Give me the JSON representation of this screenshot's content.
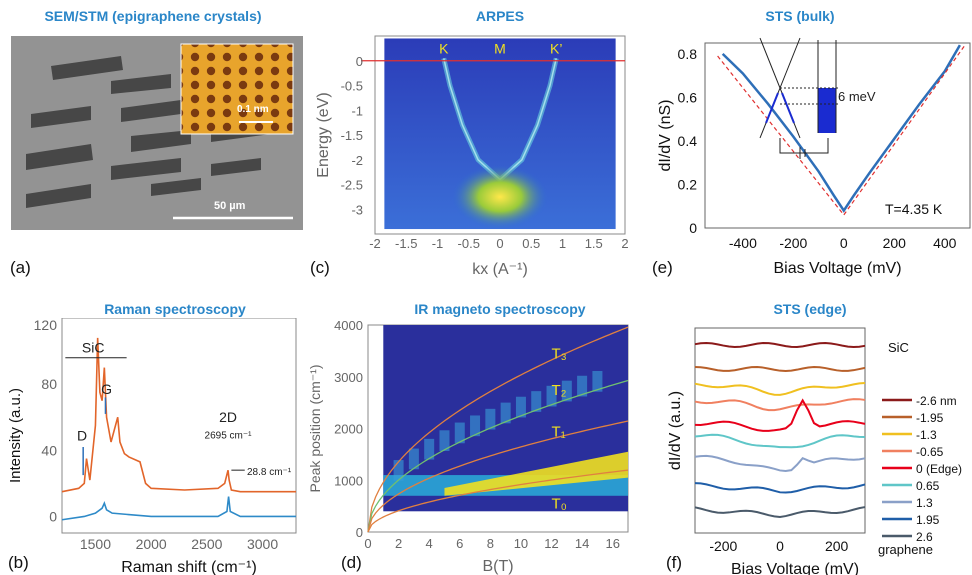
{
  "panel_labels": {
    "a": "(a)",
    "b": "(b)",
    "c": "(c)",
    "d": "(d)",
    "e": "(e)",
    "f": "(f)"
  },
  "colors": {
    "title": "#2a86c8",
    "red": "#e0001a",
    "blue": "#2e6fb8",
    "orange": "#e2652a"
  },
  "panel_a": {
    "title": "SEM/STM (epigraphene crystals)",
    "inset_label": "0.1 nm",
    "scale_label": "50 µm"
  },
  "chart_data": [
    {
      "id": "c",
      "title": "ARPES",
      "type": "heatmap",
      "xlabel": "kx (A⁻¹)",
      "ylabel": "Energy (eV)",
      "xlim": [
        -2,
        2
      ],
      "ylim": [
        -3.5,
        0.5
      ],
      "xticks": [
        "-2",
        "-1.5",
        "-1",
        "-0.5",
        "0",
        "0.5",
        "1",
        "1.5",
        "2"
      ],
      "yticks": [
        "0",
        "-0.5",
        "-1",
        "-1.5",
        "-2",
        "-2.5",
        "-3"
      ],
      "annotations": [
        {
          "text": "K",
          "x": -0.9
        },
        {
          "text": "M",
          "x": 0
        },
        {
          "text": "K’",
          "x": 0.9
        }
      ]
    },
    {
      "id": "e",
      "title": "STS (bulk)",
      "type": "line",
      "xlabel": "Bias Voltage (mV)",
      "ylabel": "dI/dV (nS)",
      "xlim": [
        -550,
        500
      ],
      "ylim": [
        0,
        0.85
      ],
      "xticks": [
        "-400",
        "-200",
        "0",
        "200",
        "400"
      ],
      "yticks": [
        "0",
        "0.2",
        "0.4",
        "0.6",
        "0.8"
      ],
      "annotation": "T=4.35 K",
      "inset_label": "6 meV",
      "series": [
        {
          "x": [
            -480,
            -400,
            -300,
            -200,
            -100,
            -40,
            0,
            40,
            100,
            200,
            300,
            400,
            460
          ],
          "y": [
            0.8,
            0.71,
            0.57,
            0.42,
            0.26,
            0.15,
            0.08,
            0.15,
            0.25,
            0.41,
            0.57,
            0.72,
            0.84
          ]
        }
      ]
    },
    {
      "id": "b",
      "title": "Raman spectroscopy",
      "type": "line",
      "xlabel": "Raman shift (cm⁻¹)",
      "ylabel": "Intensity (a.u.)",
      "xlim": [
        1200,
        3300
      ],
      "ylim": [
        -10,
        120
      ],
      "xticks": [
        "1500",
        "2000",
        "2500",
        "3000"
      ],
      "yticks": [
        "0",
        "40",
        "80",
        "120"
      ],
      "annotations": [
        "SiC",
        "G",
        "D",
        "2D",
        "2695 cm⁻¹",
        "28.8 cm⁻¹"
      ],
      "series": [
        {
          "x": [
            1200,
            1350,
            1400,
            1420,
            1450,
            1500,
            1520,
            1540,
            1560,
            1580,
            1600,
            1640,
            1680,
            1700,
            1720,
            1760,
            1800,
            1900,
            1950,
            2000,
            2300,
            2600,
            2660,
            2690,
            2700,
            2720,
            2800,
            3300
          ],
          "y": [
            15,
            17,
            20,
            35,
            22,
            55,
            108,
            75,
            70,
            90,
            60,
            45,
            55,
            60,
            45,
            38,
            36,
            33,
            20,
            17,
            16,
            17,
            20,
            28,
            22,
            16,
            15,
            15
          ]
        },
        {
          "x": [
            1200,
            1400,
            1500,
            1560,
            1580,
            1600,
            1650,
            2000,
            2600,
            2680,
            2695,
            2710,
            2800,
            3300
          ],
          "y": [
            -2,
            0,
            2,
            5,
            8,
            4,
            2,
            0,
            0,
            3,
            12,
            3,
            0,
            0
          ]
        }
      ]
    },
    {
      "id": "d",
      "title": "IR magneto spectroscopy",
      "type": "heatmap",
      "xlabel": "B(T)",
      "ylabel": "Peak position (cm⁻¹)",
      "xlim": [
        0,
        17
      ],
      "ylim": [
        0,
        4000
      ],
      "xticks": [
        "0",
        "2",
        "4",
        "6",
        "8",
        "10",
        "12",
        "14",
        "16"
      ],
      "yticks": [
        "0",
        "1000",
        "2000",
        "3000",
        "4000"
      ],
      "labels": [
        "T₃",
        "T₂",
        "T₁",
        "T₀"
      ]
    },
    {
      "id": "f",
      "title": "STS (edge)",
      "type": "line",
      "xlabel": "Bias Voltage (mV)",
      "ylabel": "dI/dV (a.u.)",
      "xlim": [
        -300,
        300
      ],
      "xticks": [
        "-200",
        "0",
        "200"
      ],
      "top_label": "SiC",
      "bottom_label": "graphene",
      "series": [
        {
          "name": "-2.6 nm",
          "color": "#8b1a1a"
        },
        {
          "name": "-1.95",
          "color": "#b8602a"
        },
        {
          "name": "-1.3",
          "color": "#f0c020"
        },
        {
          "name": "-0.65",
          "color": "#f08060"
        },
        {
          "name": "0  (Edge)",
          "color": "#e8001a"
        },
        {
          "name": "0.65",
          "color": "#5fc6c8"
        },
        {
          "name": "1.3",
          "color": "#8aa0c8"
        },
        {
          "name": "1.95",
          "color": "#1f5ea8"
        },
        {
          "name": "2.6",
          "color": "#4a5a6a"
        }
      ]
    }
  ]
}
